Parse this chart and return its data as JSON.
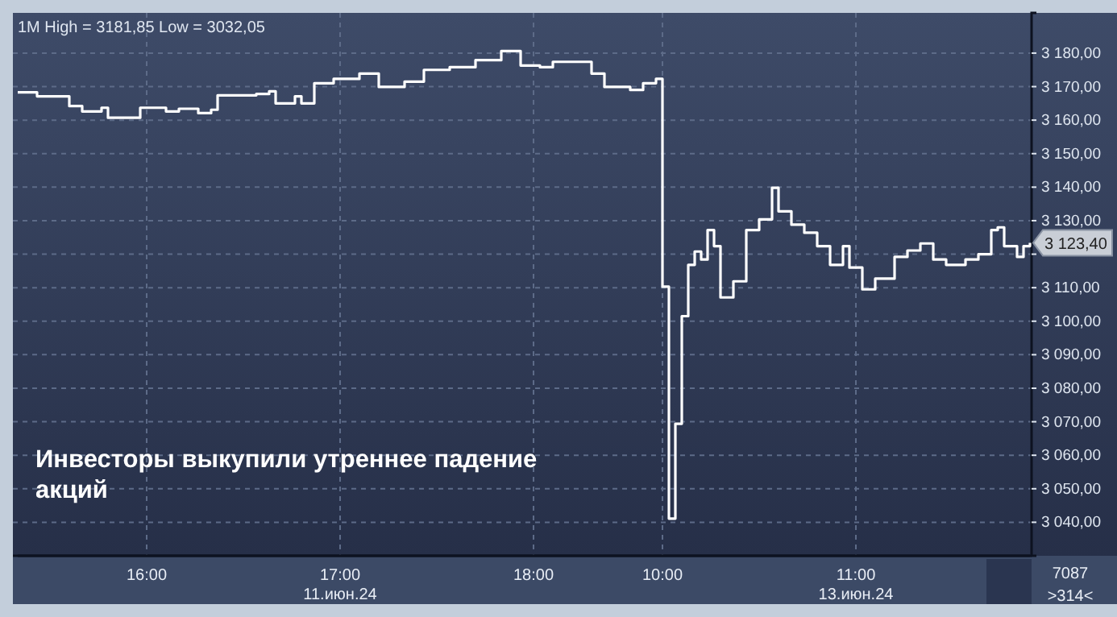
{
  "chart_data": {
    "type": "step",
    "title": "1M High = 3181,85 Low = 3032,05",
    "annotations": [
      "Инвесторы выкупили утреннее падение акций",
      "7087",
      ">314<",
      "3 123,40"
    ],
    "categories": [
      null,
      null,
      null,
      null,
      null,
      null,
      null,
      null,
      null,
      null,
      null,
      null,
      null,
      null,
      null,
      null,
      null,
      null,
      null,
      null,
      "16:00",
      null,
      null,
      null,
      null,
      null,
      null,
      null,
      null,
      null,
      null,
      null,
      null,
      null,
      null,
      null,
      null,
      null,
      null,
      null,
      null,
      null,
      null,
      null,
      null,
      null,
      null,
      null,
      null,
      null,
      "17:00\n11.июн.24",
      null,
      null,
      null,
      null,
      null,
      null,
      null,
      null,
      null,
      null,
      null,
      null,
      null,
      null,
      null,
      null,
      null,
      null,
      null,
      null,
      null,
      null,
      null,
      null,
      null,
      null,
      null,
      null,
      null,
      "18:00",
      null,
      null,
      null,
      null,
      null,
      null,
      null,
      null,
      null,
      null,
      null,
      null,
      null,
      null,
      null,
      null,
      null,
      null,
      null,
      "10:00",
      null,
      null,
      null,
      null,
      null,
      null,
      null,
      null,
      null,
      null,
      null,
      null,
      null,
      null,
      null,
      null,
      null,
      null,
      null,
      null,
      null,
      null,
      null,
      null,
      null,
      null,
      null,
      null,
      null,
      "11:00\n13.июн.24",
      null,
      null,
      null,
      null,
      null,
      null,
      null,
      null,
      null,
      null,
      null,
      null,
      null,
      null,
      null,
      null,
      null,
      null,
      null,
      null,
      null,
      null,
      null,
      null,
      null,
      null,
      null
    ],
    "series": [
      {
        "color": "#ffffff",
        "values": [
          3168.3,
          3168.3,
          3168.3,
          3167.1,
          3167.1,
          3167.1,
          3167.1,
          3167.1,
          3164.2,
          3164.2,
          3162.6,
          3162.6,
          3162.6,
          3163.7,
          3160.7,
          3160.7,
          3160.7,
          3160.7,
          3160.7,
          3163.7,
          3163.7,
          3163.7,
          3163.7,
          3162.6,
          3162.6,
          3163.4,
          3163.4,
          3163.4,
          3162.1,
          3162.1,
          3163.1,
          3167.4,
          3167.4,
          3167.4,
          3167.4,
          3167.4,
          3167.4,
          3167.8,
          3167.8,
          3168.6,
          3165,
          3165,
          3165,
          3167.1,
          3165,
          3165,
          3171,
          3171,
          3171,
          3172.3,
          3172.3,
          3172.3,
          3172.3,
          3173.9,
          3173.9,
          3173.9,
          3169.9,
          3169.9,
          3169.9,
          3169.9,
          3171.5,
          3171.5,
          3171.5,
          3175,
          3175,
          3175,
          3175,
          3175.8,
          3175.8,
          3175.8,
          3175.8,
          3177.9,
          3177.9,
          3177.9,
          3177.9,
          3180.6,
          3180.6,
          3180.6,
          3176.3,
          3176.3,
          3176.3,
          3175.8,
          3175.8,
          3177.4,
          3177.4,
          3177.4,
          3177.4,
          3177.4,
          3177.4,
          3173.9,
          3173.9,
          3169.9,
          3169.9,
          3169.9,
          3169.9,
          3169,
          3169,
          3171,
          3171,
          3172.3,
          3110.3,
          3041.1,
          3069.4,
          3101.5,
          3116.8,
          3120.8,
          3118.4,
          3127.2,
          3122.4,
          3107.1,
          3107.1,
          3111.9,
          3111.9,
          3127.2,
          3127.2,
          3130.4,
          3130.4,
          3139.8,
          3132.8,
          3132.8,
          3128.8,
          3128.8,
          3126.4,
          3126.4,
          3122.4,
          3122.4,
          3116.8,
          3116.8,
          3122.4,
          3116,
          3116,
          3109.5,
          3109.5,
          3112.7,
          3112.7,
          3112.7,
          3119.2,
          3119.2,
          3121.1,
          3121.1,
          3123.2,
          3123.2,
          3118.4,
          3118.4,
          3116.8,
          3116.8,
          3116.8,
          3118.4,
          3118.4,
          3120,
          3120,
          3127.2,
          3128,
          3122.4,
          3122.4,
          3119.2,
          3122.4,
          3123.4
        ]
      }
    ],
    "ylim": [
      3030,
      3192
    ],
    "yticks": [
      {
        "value": 3040,
        "label": "3 040,00"
      },
      {
        "value": 3050,
        "label": "3 050,00"
      },
      {
        "value": 3060,
        "label": "3 060,00"
      },
      {
        "value": 3070,
        "label": "3 070,00"
      },
      {
        "value": 3080,
        "label": "3 080,00"
      },
      {
        "value": 3090,
        "label": "3 090,00"
      },
      {
        "value": 3100,
        "label": "3 100,00"
      },
      {
        "value": 3110,
        "label": "3 110,00"
      },
      {
        "value": 3120,
        "label": null
      },
      {
        "value": 3130,
        "label": "3 130,00"
      },
      {
        "value": 3140,
        "label": "3 140,00"
      },
      {
        "value": 3150,
        "label": "3 150,00"
      },
      {
        "value": 3160,
        "label": "3 160,00"
      },
      {
        "value": 3170,
        "label": "3 170,00"
      },
      {
        "value": 3180,
        "label": "3 180,00"
      }
    ],
    "grid": true,
    "line_style": "solid"
  }
}
